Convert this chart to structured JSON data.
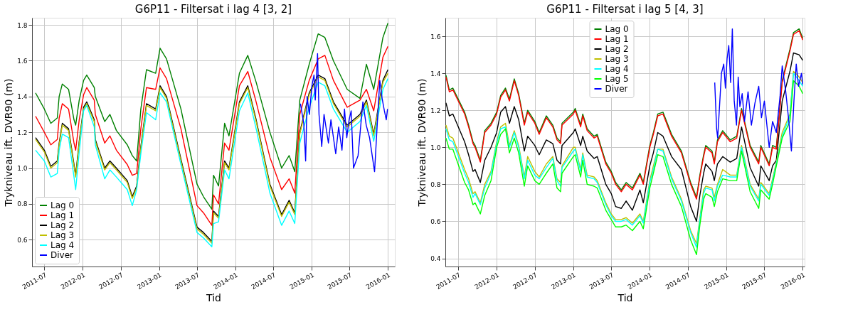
{
  "chart_data": [
    {
      "type": "line",
      "title": "G6P11  -  Filtersat i lag 4 [3, 2]",
      "xlabel": "Tid",
      "ylabel": "Trykniveau ift. DVR90 (m)",
      "x": [
        "2011-05-20",
        "2011-07-01",
        "2011-08-01",
        "2011-09-01",
        "2011-09-10",
        "2011-09-25",
        "2011-10-25",
        "2011-11-20",
        "2011-11-28",
        "2011-12-15",
        "2012-01-05",
        "2012-01-20",
        "2012-02-25",
        "2012-03-01",
        "2012-04-15",
        "2012-05-10",
        "2012-06-10",
        "2012-08-01",
        "2012-08-25",
        "2012-09-15",
        "2012-10-05",
        "2012-11-01",
        "2012-12-15",
        "2013-01-05",
        "2013-02-05",
        "2013-04-15",
        "2013-07-01",
        "2013-08-01",
        "2013-09-10",
        "2013-09-18",
        "2013-10-12",
        "2013-11-10",
        "2013-12-01",
        "2014-01-20",
        "2014-03-01",
        "2014-04-10",
        "2014-06-15",
        "2014-08-10",
        "2014-09-15",
        "2014-10-12",
        "2014-11-05",
        "2014-12-20",
        "2015-02-01",
        "2015-03-05",
        "2015-04-15",
        "2015-06-20",
        "2015-08-20",
        "2015-09-20",
        "2015-10-25",
        "2015-12-08",
        "2016-01-01"
      ],
      "series": [
        {
          "name": "Lag 0",
          "color": "#008000",
          "values": [
            1.42,
            1.33,
            1.25,
            1.28,
            1.4,
            1.47,
            1.44,
            1.27,
            1.24,
            1.38,
            1.49,
            1.52,
            1.45,
            1.4,
            1.26,
            1.3,
            1.21,
            1.13,
            1.07,
            1.04,
            1.33,
            1.55,
            1.53,
            1.67,
            1.61,
            1.33,
            0.91,
            0.84,
            0.77,
            0.96,
            0.9,
            1.25,
            1.18,
            1.53,
            1.63,
            1.48,
            1.2,
            1.0,
            1.07,
            0.98,
            1.38,
            1.58,
            1.75,
            1.73,
            1.6,
            1.44,
            1.39,
            1.58,
            1.44,
            1.73,
            1.81
          ]
        },
        {
          "name": "Lag 1",
          "color": "#ff0000",
          "values": [
            1.29,
            1.2,
            1.13,
            1.16,
            1.28,
            1.36,
            1.33,
            1.14,
            1.1,
            1.27,
            1.41,
            1.45,
            1.38,
            1.3,
            1.14,
            1.18,
            1.1,
            1.02,
            0.96,
            0.97,
            1.22,
            1.45,
            1.44,
            1.56,
            1.5,
            1.22,
            0.79,
            0.75,
            0.68,
            0.85,
            0.8,
            1.14,
            1.1,
            1.46,
            1.54,
            1.37,
            1.06,
            0.88,
            0.94,
            0.86,
            1.3,
            1.49,
            1.61,
            1.63,
            1.49,
            1.34,
            1.38,
            1.44,
            1.32,
            1.62,
            1.68
          ]
        },
        {
          "name": "Lag 2",
          "color": "#000000",
          "values": [
            1.17,
            1.1,
            1.01,
            1.04,
            1.14,
            1.25,
            1.22,
            1.02,
            0.96,
            1.15,
            1.34,
            1.37,
            1.27,
            1.16,
            1.0,
            1.04,
            1.0,
            0.93,
            0.84,
            0.9,
            1.12,
            1.36,
            1.33,
            1.46,
            1.4,
            1.05,
            0.67,
            0.64,
            0.59,
            0.76,
            0.73,
            1.04,
            1.0,
            1.37,
            1.46,
            1.27,
            0.91,
            0.74,
            0.82,
            0.75,
            1.2,
            1.42,
            1.52,
            1.5,
            1.37,
            1.24,
            1.3,
            1.38,
            1.19,
            1.49,
            1.55
          ]
        },
        {
          "name": "Lag 3",
          "color": "#bfbf00",
          "values": [
            1.16,
            1.09,
            1.0,
            1.03,
            1.13,
            1.24,
            1.21,
            1.01,
            0.95,
            1.14,
            1.33,
            1.36,
            1.26,
            1.15,
            0.99,
            1.03,
            0.99,
            0.92,
            0.83,
            0.89,
            1.11,
            1.35,
            1.32,
            1.45,
            1.39,
            1.04,
            0.66,
            0.63,
            0.58,
            0.75,
            0.72,
            1.03,
            0.99,
            1.36,
            1.45,
            1.26,
            0.9,
            0.73,
            0.81,
            0.74,
            1.19,
            1.41,
            1.51,
            1.49,
            1.36,
            1.23,
            1.29,
            1.37,
            1.18,
            1.48,
            1.53
          ]
        },
        {
          "name": "Lag 4",
          "color": "#00ffff",
          "values": [
            1.1,
            1.04,
            0.95,
            0.97,
            1.1,
            1.19,
            1.17,
            0.95,
            0.88,
            1.09,
            1.32,
            1.35,
            1.23,
            1.13,
            0.94,
            0.99,
            0.95,
            0.88,
            0.79,
            0.88,
            1.08,
            1.31,
            1.27,
            1.42,
            1.37,
            1.02,
            0.64,
            0.61,
            0.56,
            0.69,
            0.7,
            0.99,
            0.94,
            1.32,
            1.42,
            1.22,
            0.86,
            0.68,
            0.76,
            0.69,
            1.14,
            1.34,
            1.48,
            1.46,
            1.33,
            1.2,
            1.26,
            1.35,
            1.15,
            1.44,
            1.5
          ]
        },
        {
          "name": "Diver",
          "color": "#0000ff",
          "x": [
            "2014-11-08",
            "2014-11-24",
            "2014-12-03",
            "2014-12-10",
            "2014-12-21",
            "2015-01-02",
            "2015-01-12",
            "2015-01-18",
            "2015-01-29",
            "2015-02-05",
            "2015-02-18",
            "2015-03-01",
            "2015-03-22",
            "2015-04-03",
            "2015-04-26",
            "2015-05-10",
            "2015-05-26",
            "2015-06-07",
            "2015-06-18",
            "2015-06-29",
            "2015-07-09",
            "2015-07-20",
            "2015-08-11",
            "2015-09-03",
            "2015-09-19",
            "2015-10-05",
            "2015-10-29",
            "2015-11-12",
            "2015-11-23",
            "2015-12-04",
            "2015-12-15",
            "2015-12-24",
            "2015-12-30"
          ],
          "values": [
            1.36,
            1.25,
            1.04,
            1.4,
            1.3,
            1.46,
            1.52,
            1.38,
            1.64,
            1.3,
            1.12,
            1.3,
            1.14,
            1.27,
            1.08,
            1.23,
            1.1,
            1.33,
            1.17,
            1.27,
            1.32,
            1.0,
            1.07,
            1.37,
            1.24,
            1.17,
            0.98,
            1.27,
            1.49,
            1.39,
            1.32,
            1.27,
            1.33
          ]
        }
      ],
      "xlim": [
        "2011-05-03",
        "2016-02-03"
      ],
      "ylim": [
        0.45,
        1.84
      ],
      "xticks": [
        "2011-07",
        "2012-01",
        "2012-07",
        "2013-01",
        "2013-07",
        "2014-01",
        "2014-07",
        "2015-01",
        "2015-07",
        "2016-01"
      ],
      "yticks": [
        {
          "value": 0.6,
          "label": "0.6"
        },
        {
          "value": 0.8,
          "label": "0.8"
        },
        {
          "value": 1.0,
          "label": "1.0"
        },
        {
          "value": 1.2,
          "label": "1.2"
        },
        {
          "value": 1.4,
          "label": "1.4"
        },
        {
          "value": 1.6,
          "label": "1.6"
        },
        {
          "value": 1.8,
          "label": "1.8"
        }
      ],
      "grid": true,
      "legend": "bottom left"
    },
    {
      "type": "line",
      "title": "G6P11  -  Filtersat i lag 5 [4, 3]",
      "xlabel": "Tid",
      "ylabel": "Trykniveau ift. DVR90 (m)",
      "x": [
        "2011-05-04",
        "2011-05-20",
        "2011-06-06",
        "2011-08-01",
        "2011-08-20",
        "2011-09-10",
        "2011-09-20",
        "2011-10-15",
        "2011-11-05",
        "2011-12-05",
        "2012-01-01",
        "2012-01-20",
        "2012-02-12",
        "2012-03-02",
        "2012-03-25",
        "2012-04-15",
        "2012-05-12",
        "2012-05-28",
        "2012-07-01",
        "2012-07-22",
        "2012-08-25",
        "2012-09-25",
        "2012-10-15",
        "2012-11-01",
        "2012-11-08",
        "2013-01-01",
        "2013-01-10",
        "2013-02-05",
        "2013-02-15",
        "2013-03-08",
        "2013-04-10",
        "2013-04-25",
        "2013-06-05",
        "2013-07-01",
        "2013-07-22",
        "2013-08-18",
        "2013-09-10",
        "2013-10-10",
        "2013-11-15",
        "2013-12-01",
        "2014-01-01",
        "2014-01-18",
        "2014-02-08",
        "2014-03-05",
        "2014-04-15",
        "2014-06-01",
        "2014-07-15",
        "2014-08-12",
        "2014-08-28",
        "2014-09-15",
        "2014-09-25",
        "2014-10-25",
        "2014-11-05",
        "2014-11-20",
        "2014-12-15",
        "2015-01-20",
        "2015-02-20",
        "2015-03-15",
        "2015-04-25",
        "2015-06-05",
        "2015-06-15",
        "2015-07-25",
        "2015-08-10",
        "2015-08-28",
        "2015-09-25",
        "2015-11-01",
        "2015-11-18",
        "2015-12-15",
        "2016-01-01"
      ],
      "series": [
        {
          "name": "Lag 0",
          "color": "#008000",
          "values": [
            1.39,
            1.31,
            1.32,
            1.19,
            1.12,
            1.03,
            1.01,
            0.93,
            1.09,
            1.13,
            1.19,
            1.28,
            1.32,
            1.26,
            1.37,
            1.29,
            1.13,
            1.2,
            1.14,
            1.08,
            1.17,
            1.12,
            1.05,
            1.03,
            1.13,
            1.19,
            1.21,
            1.12,
            1.18,
            1.1,
            1.06,
            1.07,
            0.92,
            0.87,
            0.81,
            0.77,
            0.81,
            0.78,
            0.86,
            0.81,
            1.01,
            1.08,
            1.18,
            1.19,
            1.07,
            0.98,
            0.81,
            0.73,
            0.85,
            0.96,
            1.01,
            0.98,
            0.92,
            1.04,
            1.09,
            1.04,
            1.06,
            1.21,
            1.01,
            0.92,
            1.01,
            0.91,
            1.01,
            1.0,
            1.36,
            1.53,
            1.62,
            1.64,
            1.59
          ]
        },
        {
          "name": "Lag 1",
          "color": "#ff0000",
          "values": [
            1.38,
            1.3,
            1.31,
            1.18,
            1.11,
            1.02,
            1.0,
            0.92,
            1.08,
            1.12,
            1.18,
            1.27,
            1.31,
            1.25,
            1.36,
            1.28,
            1.12,
            1.19,
            1.13,
            1.07,
            1.16,
            1.11,
            1.04,
            1.02,
            1.12,
            1.18,
            1.2,
            1.11,
            1.17,
            1.09,
            1.05,
            1.06,
            0.91,
            0.86,
            0.8,
            0.76,
            0.8,
            0.77,
            0.85,
            0.8,
            1.0,
            1.07,
            1.17,
            1.18,
            1.06,
            0.97,
            0.8,
            0.72,
            0.84,
            0.95,
            1.0,
            0.97,
            0.91,
            1.03,
            1.08,
            1.03,
            1.05,
            1.2,
            1.0,
            0.91,
            1.0,
            0.9,
            1.0,
            0.99,
            1.35,
            1.52,
            1.61,
            1.63,
            1.58
          ]
        },
        {
          "name": "Lag 2",
          "color": "#000000",
          "values": [
            1.24,
            1.17,
            1.18,
            1.03,
            0.96,
            0.87,
            0.88,
            0.81,
            0.93,
            1.0,
            1.08,
            1.19,
            1.22,
            1.13,
            1.22,
            1.15,
            0.98,
            1.06,
            1.01,
            0.96,
            1.04,
            1.02,
            0.93,
            0.91,
            1.01,
            1.08,
            1.1,
            1.01,
            1.06,
            0.98,
            0.94,
            0.95,
            0.8,
            0.75,
            0.68,
            0.67,
            0.71,
            0.66,
            0.77,
            0.7,
            0.9,
            0.97,
            1.08,
            1.06,
            0.95,
            0.88,
            0.68,
            0.6,
            0.74,
            0.86,
            0.91,
            0.87,
            0.82,
            0.91,
            0.95,
            0.92,
            0.94,
            1.11,
            0.89,
            0.79,
            0.9,
            0.82,
            0.9,
            0.93,
            1.25,
            1.41,
            1.51,
            1.5,
            1.47
          ]
        },
        {
          "name": "Lag 3",
          "color": "#bfbf00",
          "values": [
            1.12,
            1.06,
            1.05,
            0.88,
            0.83,
            0.75,
            0.76,
            0.7,
            0.8,
            0.87,
            1.03,
            1.11,
            1.13,
            1.01,
            1.09,
            1.01,
            0.84,
            0.95,
            0.87,
            0.84,
            0.91,
            0.95,
            0.83,
            0.81,
            0.9,
            1.0,
            1.0,
            0.88,
            0.97,
            0.85,
            0.84,
            0.82,
            0.7,
            0.64,
            0.61,
            0.61,
            0.62,
            0.59,
            0.64,
            0.6,
            0.82,
            0.9,
            0.99,
            0.99,
            0.84,
            0.72,
            0.55,
            0.48,
            0.62,
            0.77,
            0.79,
            0.78,
            0.73,
            0.8,
            0.88,
            0.85,
            0.85,
            1.01,
            0.8,
            0.72,
            0.81,
            0.75,
            0.83,
            0.92,
            1.08,
            1.18,
            1.41,
            1.38,
            1.35
          ]
        },
        {
          "name": "Lag 4",
          "color": "#00ffff",
          "values": [
            1.1,
            1.04,
            1.03,
            0.86,
            0.81,
            0.73,
            0.75,
            0.69,
            0.78,
            0.86,
            1.02,
            1.1,
            1.11,
            1.0,
            1.08,
            1.0,
            0.83,
            0.93,
            0.85,
            0.83,
            0.89,
            0.94,
            0.82,
            0.79,
            0.89,
            0.98,
            0.99,
            0.87,
            0.96,
            0.84,
            0.83,
            0.81,
            0.69,
            0.63,
            0.6,
            0.6,
            0.61,
            0.58,
            0.63,
            0.59,
            0.81,
            0.88,
            0.99,
            0.98,
            0.83,
            0.71,
            0.54,
            0.46,
            0.61,
            0.75,
            0.78,
            0.77,
            0.71,
            0.79,
            0.85,
            0.84,
            0.84,
            1.0,
            0.79,
            0.71,
            0.8,
            0.74,
            0.82,
            0.91,
            1.06,
            1.17,
            1.4,
            1.36,
            1.33
          ]
        },
        {
          "name": "Lag 5",
          "color": "#00ff00",
          "values": [
            1.05,
            0.99,
            0.99,
            0.81,
            0.77,
            0.69,
            0.7,
            0.64,
            0.74,
            0.82,
            1.0,
            1.07,
            1.1,
            0.97,
            1.05,
            0.97,
            0.79,
            0.9,
            0.82,
            0.8,
            0.86,
            0.91,
            0.78,
            0.76,
            0.86,
            0.95,
            0.96,
            0.84,
            0.93,
            0.8,
            0.79,
            0.78,
            0.66,
            0.61,
            0.57,
            0.57,
            0.58,
            0.55,
            0.6,
            0.56,
            0.78,
            0.86,
            0.96,
            0.95,
            0.8,
            0.68,
            0.5,
            0.42,
            0.58,
            0.72,
            0.75,
            0.73,
            0.68,
            0.76,
            0.83,
            0.82,
            0.82,
            0.98,
            0.76,
            0.67,
            0.77,
            0.72,
            0.8,
            0.9,
            1.05,
            1.14,
            1.36,
            1.33,
            1.29
          ]
        },
        {
          "name": "Diver",
          "color": "#0000ff",
          "x": [
            "2014-11-07",
            "2014-11-16",
            "2014-11-21",
            "2014-12-09",
            "2014-12-20",
            "2014-12-28",
            "2015-01-05",
            "2015-01-13",
            "2015-01-22",
            "2015-01-30",
            "2015-02-08",
            "2015-02-19",
            "2015-02-27",
            "2015-03-07",
            "2015-03-18",
            "2015-03-29",
            "2015-04-15",
            "2015-05-01",
            "2015-05-18",
            "2015-06-05",
            "2015-06-18",
            "2015-07-02",
            "2015-07-25",
            "2015-08-10",
            "2015-08-28",
            "2015-09-15",
            "2015-09-25",
            "2015-10-12",
            "2015-10-25",
            "2015-11-08",
            "2015-11-20",
            "2015-12-01",
            "2015-12-12",
            "2015-12-26",
            "2016-01-01"
          ],
          "values": [
            1.35,
            1.1,
            1.05,
            1.4,
            1.45,
            1.32,
            1.48,
            1.55,
            1.35,
            1.64,
            1.25,
            1.12,
            1.38,
            1.22,
            1.29,
            1.14,
            1.3,
            1.12,
            1.24,
            1.33,
            1.16,
            1.25,
            1.0,
            1.14,
            1.08,
            1.28,
            1.44,
            1.3,
            1.16,
            0.98,
            1.25,
            1.45,
            1.33,
            1.4,
            1.34
          ]
        }
      ],
      "xlim": [
        "2011-05-01",
        "2016-01-10"
      ],
      "ylim": [
        0.356,
        1.7
      ],
      "xticks": [
        "2011-07",
        "2012-01",
        "2012-07",
        "2013-01",
        "2013-07",
        "2014-01",
        "2014-07",
        "2015-01",
        "2015-07",
        "2016-01"
      ],
      "yticks": [
        {
          "value": 0.4,
          "label": "0.4"
        },
        {
          "value": 0.6,
          "label": "0.6"
        },
        {
          "value": 0.8,
          "label": "0.8"
        },
        {
          "value": 1.0,
          "label": "1.0"
        },
        {
          "value": 1.2,
          "label": "1.2"
        },
        {
          "value": 1.4,
          "label": "1.4"
        },
        {
          "value": 1.6,
          "label": "1.6"
        }
      ],
      "grid": true,
      "legend": "top"
    }
  ]
}
